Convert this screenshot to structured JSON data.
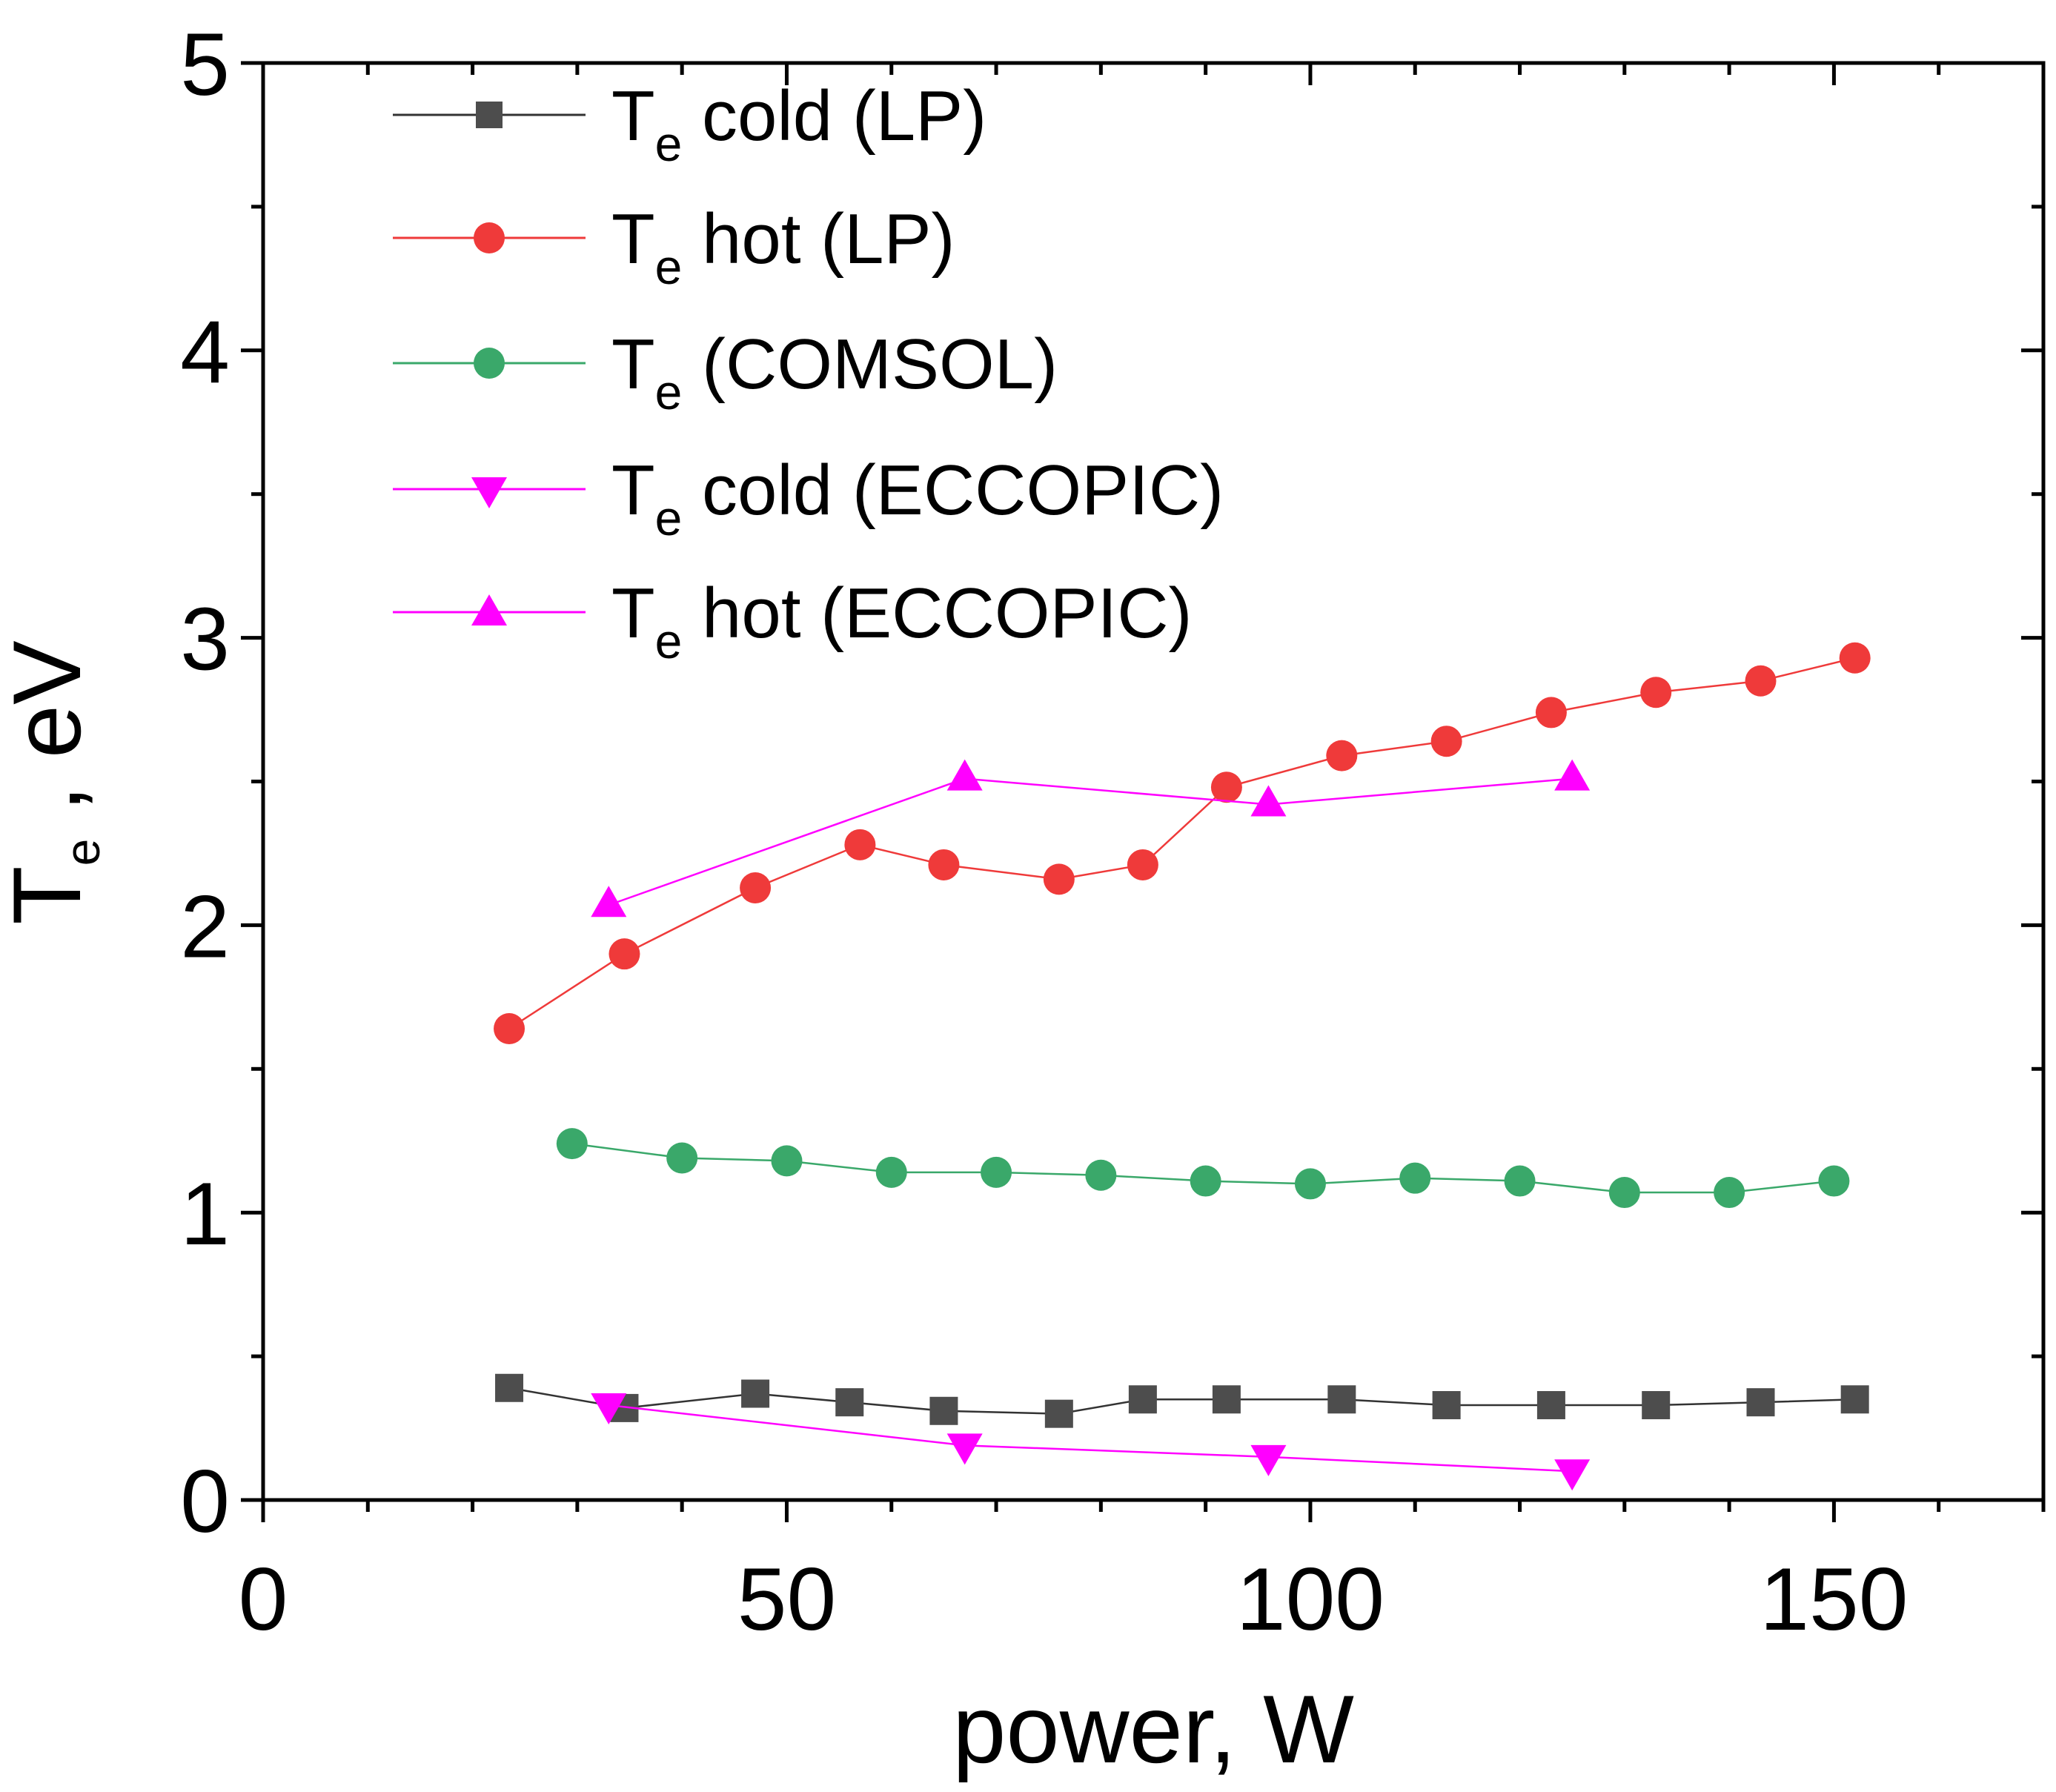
{
  "chart_data": {
    "type": "line",
    "xlabel": "power, W",
    "ylabel": "T",
    "ylabel_sub": "e",
    "ylabel_suffix": " , eV",
    "xlim": [
      0,
      170
    ],
    "ylim": [
      0,
      5
    ],
    "x_ticks": [
      0,
      50,
      100,
      150
    ],
    "x_tick_labels": [
      "0",
      "50",
      "100",
      "150"
    ],
    "y_ticks": [
      0,
      1,
      2,
      3,
      4,
      5
    ],
    "y_tick_labels": [
      "0",
      "1",
      "2",
      "3",
      "4",
      "5"
    ],
    "legend_position": "top-left",
    "grid": false,
    "series": [
      {
        "name": "T",
        "name_sub": "e",
        "name_rest": " cold (LP)",
        "color": "#4d4d4d",
        "line_color": "#333333",
        "marker": "square",
        "x": [
          23.5,
          34.5,
          47,
          56,
          65,
          76,
          84,
          92,
          103,
          113,
          123,
          133,
          143,
          152
        ],
        "y": [
          0.39,
          0.32,
          0.37,
          0.34,
          0.31,
          0.3,
          0.35,
          0.35,
          0.35,
          0.33,
          0.33,
          0.33,
          0.34,
          0.35
        ]
      },
      {
        "name": "T",
        "name_sub": "e",
        "name_rest": " hot (LP)",
        "color": "#ef3a3a",
        "line_color": "#ef3a3a",
        "marker": "circle",
        "x": [
          23.5,
          34.5,
          47,
          57,
          65,
          76,
          84,
          92,
          103,
          113,
          123,
          133,
          143,
          152
        ],
        "y": [
          1.64,
          1.9,
          2.13,
          2.28,
          2.21,
          2.16,
          2.21,
          2.48,
          2.59,
          2.64,
          2.74,
          2.81,
          2.85,
          2.93
        ]
      },
      {
        "name": "T",
        "name_sub": "e",
        "name_rest": " (COMSOL)",
        "color": "#3aa86a",
        "line_color": "#3aa86a",
        "marker": "circle",
        "x": [
          29.5,
          40,
          50,
          60,
          70,
          80,
          90,
          100,
          110,
          120,
          130,
          140,
          150
        ],
        "y": [
          1.24,
          1.19,
          1.18,
          1.14,
          1.14,
          1.13,
          1.11,
          1.1,
          1.12,
          1.11,
          1.07,
          1.07,
          1.11
        ]
      },
      {
        "name": "T",
        "name_sub": "e",
        "name_rest": " cold (ECCOPIC)",
        "color": "#ff00ff",
        "line_color": "#ff00ff",
        "marker": "triangle-down",
        "x": [
          33,
          67,
          96,
          125
        ],
        "y": [
          0.33,
          0.19,
          0.15,
          0.1
        ]
      },
      {
        "name": "T",
        "name_sub": "e",
        "name_rest": " hot (ECCOPIC)",
        "color": "#ff00ff",
        "line_color": "#ff00ff",
        "marker": "triangle-up",
        "x": [
          33,
          67,
          96,
          125
        ],
        "y": [
          2.07,
          2.51,
          2.42,
          2.51
        ]
      }
    ]
  }
}
